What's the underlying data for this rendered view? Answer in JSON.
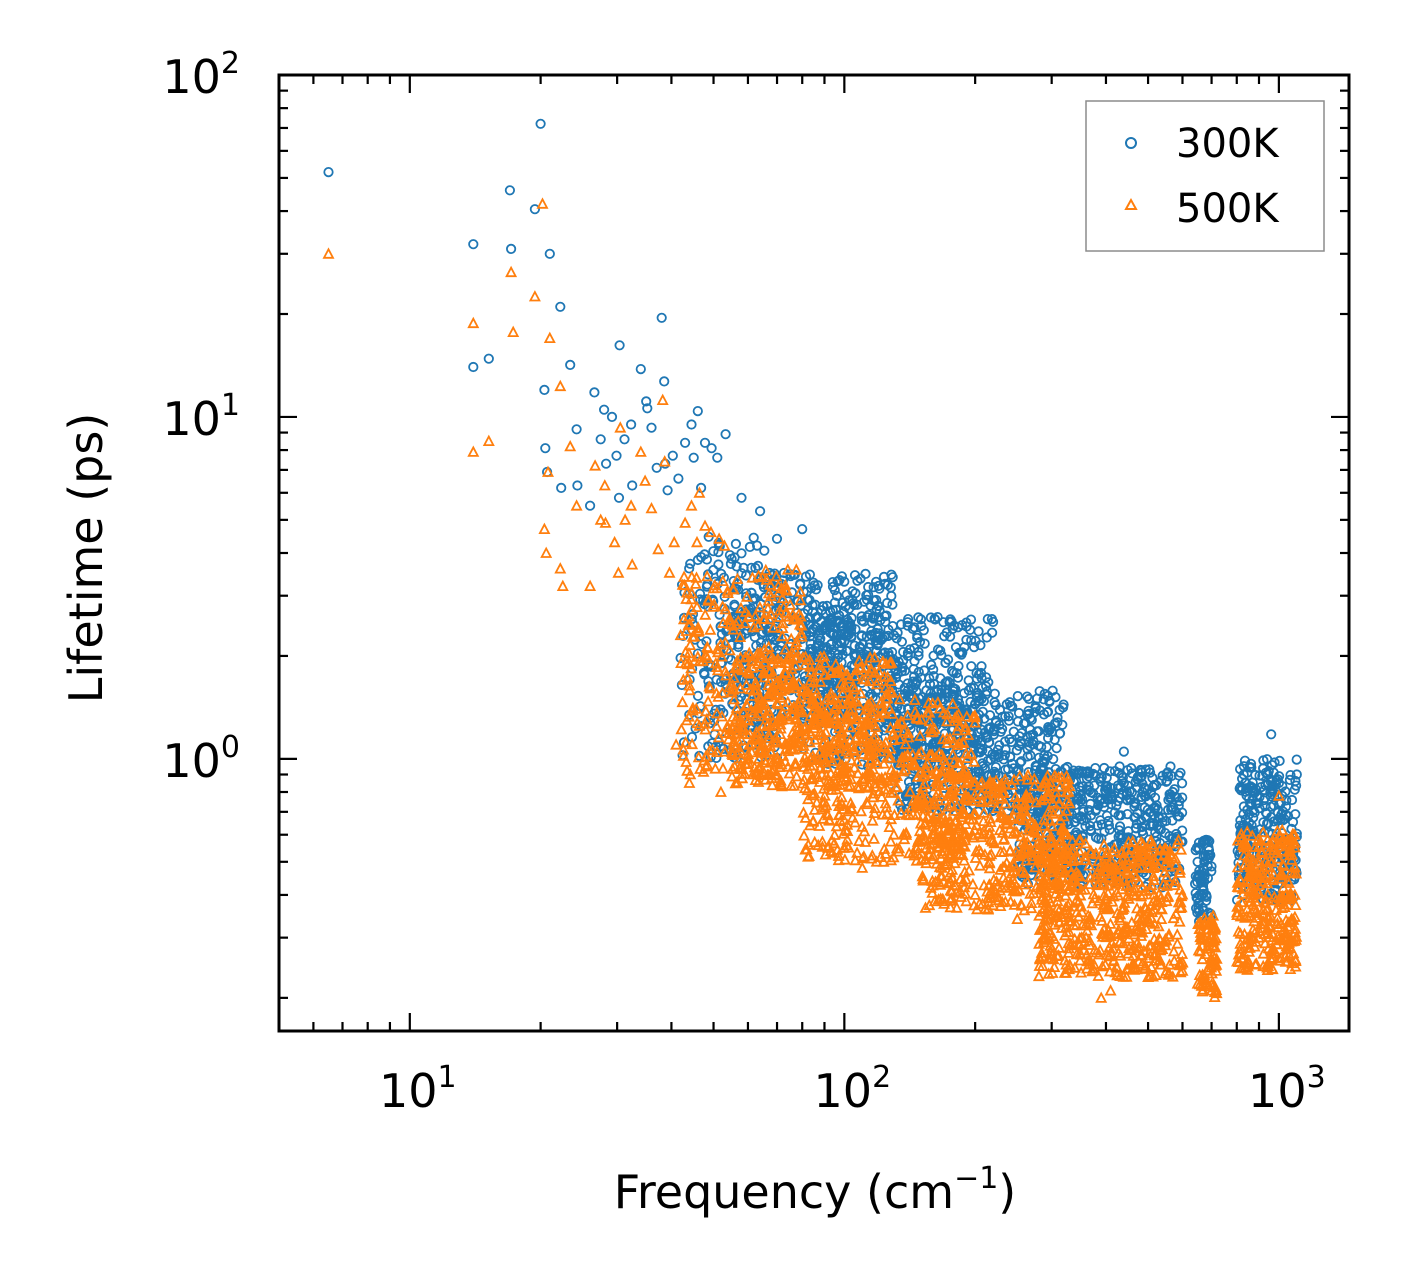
{
  "chart_data": {
    "type": "scatter",
    "title": "",
    "xlabel": "Frequency (cm",
    "xlabel_sup": "−1",
    "xlabel_tail": ")",
    "ylabel": "Lifetime (ps)",
    "xscale": "log",
    "yscale": "log",
    "xlim": [
      5,
      1450
    ],
    "ylim": [
      0.16,
      100
    ],
    "x_ticks": [
      {
        "value": 10,
        "base": "10",
        "exp": "1"
      },
      {
        "value": 100,
        "base": "10",
        "exp": "2"
      },
      {
        "value": 1000,
        "base": "10",
        "exp": "3"
      }
    ],
    "y_ticks": [
      {
        "value": 1,
        "base": "10",
        "exp": "0"
      },
      {
        "value": 10,
        "base": "10",
        "exp": "1"
      },
      {
        "value": 100,
        "base": "10",
        "exp": "2"
      }
    ],
    "legend_position": "top-right",
    "series": [
      {
        "name": "300K",
        "color": "#1f77b4",
        "marker": "circle",
        "points": [
          [
            6.5,
            52
          ],
          [
            14,
            32
          ],
          [
            14,
            14
          ],
          [
            15.2,
            14.8
          ],
          [
            17,
            46
          ],
          [
            17.1,
            31
          ],
          [
            19.4,
            40.5
          ],
          [
            20,
            72
          ],
          [
            20.4,
            12
          ],
          [
            20.5,
            8.1
          ],
          [
            20.7,
            6.9
          ],
          [
            21,
            30
          ],
          [
            22.2,
            21
          ],
          [
            22.3,
            6.2
          ],
          [
            23.4,
            14.2
          ],
          [
            24.2,
            9.2
          ],
          [
            24.3,
            6.3
          ],
          [
            26,
            5.5
          ],
          [
            26.6,
            11.8
          ],
          [
            27.5,
            8.6
          ],
          [
            28,
            10.5
          ],
          [
            28.3,
            7.3
          ],
          [
            29.2,
            10
          ],
          [
            29.9,
            7.7
          ],
          [
            30.3,
            5.8
          ],
          [
            30.4,
            16.2
          ],
          [
            31.2,
            8.6
          ],
          [
            32.3,
            9.5
          ],
          [
            32.5,
            6.3
          ],
          [
            34,
            13.8
          ],
          [
            35,
            11.1
          ],
          [
            35.2,
            10.6
          ],
          [
            36,
            9.3
          ],
          [
            37,
            7.1
          ],
          [
            38,
            19.5
          ],
          [
            38.5,
            12.7
          ],
          [
            38.7,
            7.3
          ],
          [
            39.2,
            6.1
          ],
          [
            40.3,
            7.7
          ],
          [
            41.5,
            6.6
          ],
          [
            43,
            8.4
          ],
          [
            44.5,
            9.5
          ],
          [
            45,
            7.6
          ],
          [
            46,
            10.4
          ],
          [
            46.8,
            6.2
          ],
          [
            47.8,
            8.4
          ],
          [
            49.5,
            8.1
          ],
          [
            51,
            7.6
          ],
          [
            53.3,
            8.9
          ],
          [
            58,
            5.8
          ],
          [
            64,
            5.3
          ],
          [
            70,
            4.4
          ],
          [
            80,
            4.7
          ],
          [
            100,
            3.3
          ],
          [
            120,
            2.8
          ],
          [
            130,
            2.3
          ],
          [
            140,
            2.0
          ],
          [
            180,
            1.6
          ],
          [
            200,
            1.45
          ],
          [
            270,
            1.3
          ],
          [
            290,
            1.0
          ],
          [
            320,
            0.73
          ],
          [
            350,
            0.78
          ],
          [
            400,
            0.8
          ],
          [
            430,
            0.95
          ],
          [
            440,
            1.05
          ],
          [
            480,
            0.88
          ],
          [
            520,
            0.72
          ],
          [
            570,
            0.8
          ],
          [
            585,
            0.68
          ],
          [
            650,
            0.5
          ],
          [
            680,
            0.58
          ],
          [
            830,
            0.9
          ],
          [
            960,
            1.18
          ],
          [
            1000,
            0.85
          ],
          [
            1050,
            0.68
          ],
          [
            1090,
            0.55
          ]
        ],
        "bands": [
          {
            "x": [
              42,
              70
            ],
            "y": [
              1.0,
              4.5
            ],
            "n": 240
          },
          {
            "x": [
              55,
              130
            ],
            "y": [
              1.3,
              3.5
            ],
            "n": 420
          },
          {
            "x": [
              80,
              220
            ],
            "y": [
              0.95,
              2.6
            ],
            "n": 520
          },
          {
            "x": [
              130,
              320
            ],
            "y": [
              0.7,
              1.6
            ],
            "n": 460
          },
          {
            "x": [
              250,
              600
            ],
            "y": [
              0.42,
              0.95
            ],
            "n": 560
          },
          {
            "x": [
              640,
              700
            ],
            "y": [
              0.33,
              0.58
            ],
            "n": 70
          },
          {
            "x": [
              800,
              1100
            ],
            "y": [
              0.38,
              1.0
            ],
            "n": 260
          }
        ]
      },
      {
        "name": "500K",
        "color": "#ff7f0e",
        "marker": "triangle",
        "points": [
          [
            6.5,
            30
          ],
          [
            14,
            18.8
          ],
          [
            14,
            7.9
          ],
          [
            15.2,
            8.5
          ],
          [
            17.1,
            26.5
          ],
          [
            17.3,
            17.7
          ],
          [
            19.4,
            22.5
          ],
          [
            20.2,
            42
          ],
          [
            20.4,
            4.7
          ],
          [
            20.6,
            4.0
          ],
          [
            20.8,
            6.9
          ],
          [
            21,
            17
          ],
          [
            22.2,
            12.3
          ],
          [
            22.2,
            3.6
          ],
          [
            22.5,
            3.2
          ],
          [
            23.4,
            8.2
          ],
          [
            24.2,
            5.5
          ],
          [
            26,
            3.2
          ],
          [
            26.7,
            7.2
          ],
          [
            27.5,
            5.0
          ],
          [
            28.1,
            6.3
          ],
          [
            28.2,
            4.9
          ],
          [
            29.6,
            4.3
          ],
          [
            30.2,
            3.5
          ],
          [
            30.5,
            9.3
          ],
          [
            31.3,
            5.0
          ],
          [
            32.3,
            5.5
          ],
          [
            32.5,
            3.7
          ],
          [
            34,
            7.9
          ],
          [
            34.8,
            6.5
          ],
          [
            36,
            5.4
          ],
          [
            37.3,
            4.1
          ],
          [
            38.2,
            11.2
          ],
          [
            38.6,
            7.4
          ],
          [
            39.6,
            3.5
          ],
          [
            40.6,
            4.3
          ],
          [
            42,
            2.3
          ],
          [
            43,
            4.9
          ],
          [
            44.5,
            5.5
          ],
          [
            45.8,
            4.3
          ],
          [
            46.4,
            6.0
          ],
          [
            47.8,
            4.8
          ],
          [
            49.3,
            4.6
          ],
          [
            51.5,
            4.4
          ],
          [
            53,
            4.2
          ],
          [
            41,
            1.1
          ],
          [
            44,
            0.85
          ],
          [
            48,
            0.95
          ],
          [
            52,
            0.8
          ],
          [
            60,
            1.0
          ],
          [
            70,
            0.9
          ],
          [
            90,
            0.75
          ],
          [
            100,
            0.55
          ],
          [
            110,
            0.48
          ],
          [
            130,
            0.6
          ],
          [
            160,
            0.52
          ],
          [
            200,
            0.4
          ],
          [
            250,
            0.34
          ],
          [
            300,
            0.28
          ],
          [
            330,
            0.25
          ],
          [
            360,
            0.3
          ],
          [
            390,
            0.2
          ],
          [
            410,
            0.21
          ],
          [
            460,
            0.25
          ],
          [
            500,
            0.23
          ],
          [
            560,
            0.25
          ],
          [
            600,
            0.24
          ],
          [
            650,
            0.22
          ],
          [
            700,
            0.3
          ],
          [
            850,
            0.28
          ],
          [
            900,
            0.3
          ],
          [
            1000,
            0.78
          ],
          [
            1080,
            0.27
          ]
        ],
        "bands": [
          {
            "x": [
              42,
              80
            ],
            "y": [
              0.9,
              3.6
            ],
            "n": 300
          },
          {
            "x": [
              55,
              130
            ],
            "y": [
              0.82,
              2.0
            ],
            "n": 420
          },
          {
            "x": [
              80,
              200
            ],
            "y": [
              0.5,
              1.5
            ],
            "n": 460
          },
          {
            "x": [
              150,
              330
            ],
            "y": [
              0.36,
              0.9
            ],
            "n": 460
          },
          {
            "x": [
              280,
              600
            ],
            "y": [
              0.23,
              0.58
            ],
            "n": 560
          },
          {
            "x": [
              650,
              720
            ],
            "y": [
              0.2,
              0.35
            ],
            "n": 80
          },
          {
            "x": [
              800,
              1100
            ],
            "y": [
              0.24,
              0.62
            ],
            "n": 300
          }
        ]
      }
    ]
  }
}
